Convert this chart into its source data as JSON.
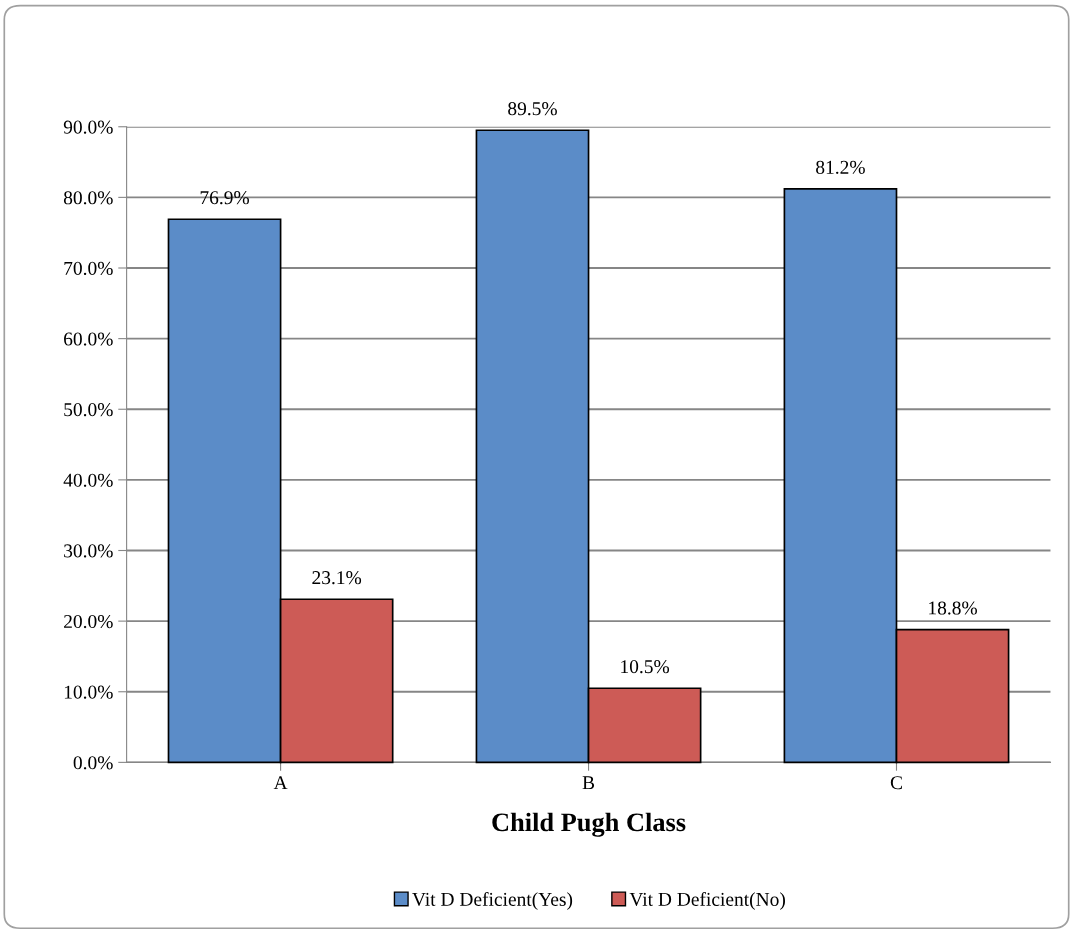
{
  "chart_data": {
    "type": "bar",
    "xlabel": "Child Pugh Class",
    "categories": [
      "A",
      "B",
      "C"
    ],
    "series": [
      {
        "name": "Vit D Deficient(Yes)",
        "color": "#5b8cc8",
        "values": [
          76.9,
          89.5,
          81.2
        ],
        "value_labels": [
          "76.9%",
          "89.5%",
          "81.2%"
        ]
      },
      {
        "name": "Vit D Deficient(No)",
        "color": "#cd5b56",
        "values": [
          23.1,
          10.5,
          18.8
        ],
        "value_labels": [
          "23.1%",
          "10.5%",
          "18.8%"
        ]
      }
    ],
    "ylim": [
      0,
      90
    ],
    "yticks": [
      {
        "value": 0,
        "label": "0.0%"
      },
      {
        "value": 10,
        "label": "10.0%"
      },
      {
        "value": 20,
        "label": "20.0%"
      },
      {
        "value": 30,
        "label": "30.0%"
      },
      {
        "value": 40,
        "label": "40.0%"
      },
      {
        "value": 50,
        "label": "50.0%"
      },
      {
        "value": 60,
        "label": "60.0%"
      },
      {
        "value": 70,
        "label": "70.0%"
      },
      {
        "value": 80,
        "label": "80.0%"
      },
      {
        "value": 90,
        "label": "90.0%"
      }
    ],
    "grid": "y",
    "legend": "bottom"
  }
}
